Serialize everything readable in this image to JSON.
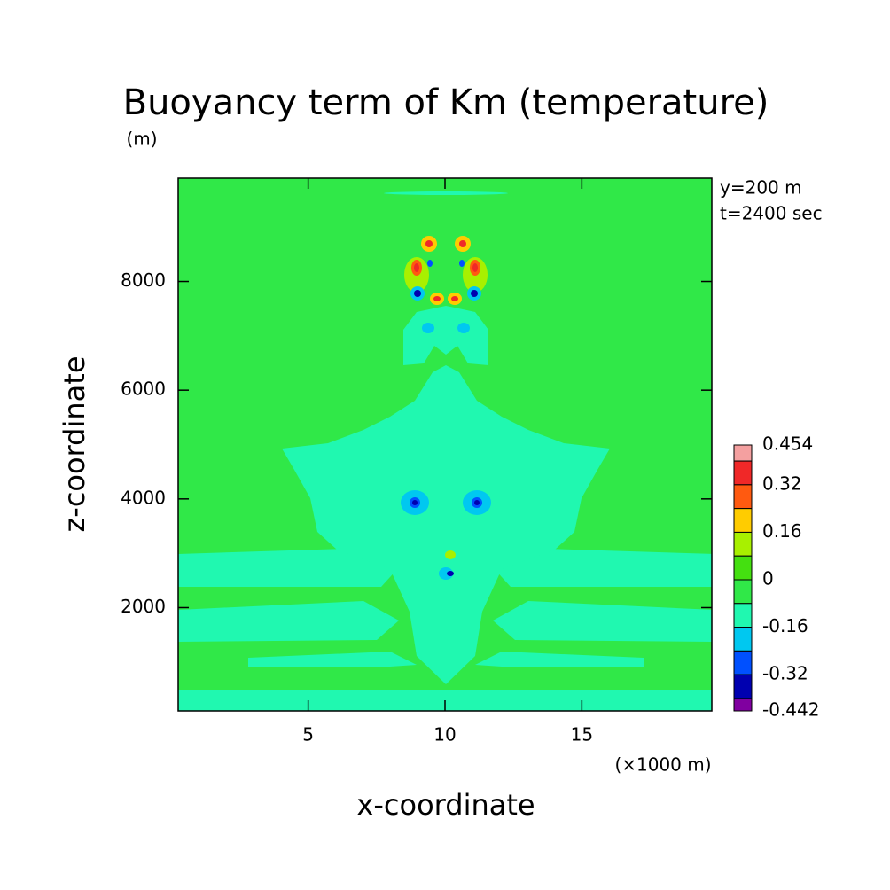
{
  "chart_data": {
    "type": "contour",
    "title": "Buoyancy term of Km (temperature)",
    "y_unit": "(m)",
    "x_unit": "(×1000 m)",
    "x_label": "x-coordinate",
    "y_label": "z-coordinate",
    "annotations": [
      "y=200 m",
      "t=2400 sec"
    ],
    "xlim": [
      0.25,
      19.75
    ],
    "xticks": [
      5,
      10,
      15
    ],
    "ylim": [
      100,
      9900
    ],
    "yticks": [
      2000,
      4000,
      6000,
      8000
    ],
    "colorbar": {
      "levels": [
        0.454,
        0.4,
        0.32,
        0.24,
        0.16,
        0.08,
        0,
        -0.08,
        -0.16,
        -0.24,
        -0.32,
        -0.4,
        -0.442
      ],
      "colors": [
        "#f4a0a0",
        "#f02828",
        "#ff5a10",
        "#ffcc00",
        "#a8f000",
        "#44e010",
        "#30e848",
        "#20f8b0",
        "#00c8f0",
        "#0050ff",
        "#0000b0",
        "#8000a0"
      ],
      "ticks": [
        0.454,
        0.32,
        0.16,
        0,
        -0.16,
        -0.32,
        -0.442
      ]
    }
  }
}
